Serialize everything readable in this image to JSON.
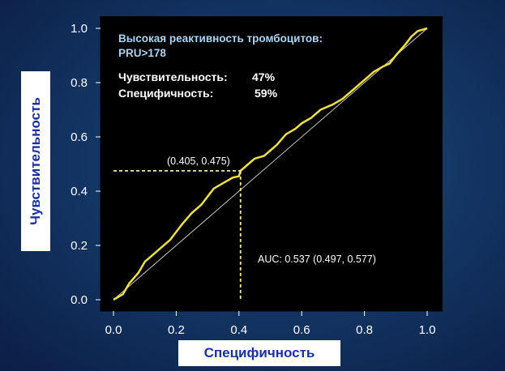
{
  "chart_data": {
    "type": "line",
    "xlabel": "Специфичность",
    "ylabel": "Чувствительность",
    "xlim": [
      0.0,
      1.0
    ],
    "ylim": [
      0.0,
      1.0
    ],
    "x_ticks": [
      "0.0",
      "0.2",
      "0.4",
      "0.6",
      "0.8",
      "1.0"
    ],
    "y_ticks": [
      "0.0",
      "0.2",
      "0.4",
      "0.6",
      "0.8",
      "1.0"
    ],
    "grid": false,
    "series": [
      {
        "color": "#f0e040",
        "x": [
          0.0,
          0.03,
          0.05,
          0.08,
          0.1,
          0.12,
          0.15,
          0.18,
          0.2,
          0.22,
          0.25,
          0.28,
          0.3,
          0.32,
          0.35,
          0.38,
          0.4,
          0.405,
          0.43,
          0.45,
          0.48,
          0.5,
          0.52,
          0.55,
          0.58,
          0.6,
          0.63,
          0.66,
          0.7,
          0.73,
          0.76,
          0.8,
          0.83,
          0.86,
          0.88,
          0.9,
          0.93,
          0.95,
          0.97,
          1.0
        ],
        "y": [
          0.0,
          0.02,
          0.06,
          0.1,
          0.14,
          0.16,
          0.19,
          0.22,
          0.25,
          0.28,
          0.32,
          0.35,
          0.38,
          0.41,
          0.43,
          0.45,
          0.455,
          0.475,
          0.5,
          0.52,
          0.53,
          0.55,
          0.57,
          0.61,
          0.63,
          0.65,
          0.67,
          0.7,
          0.72,
          0.74,
          0.77,
          0.81,
          0.84,
          0.86,
          0.87,
          0.9,
          0.94,
          0.97,
          0.99,
          1.0
        ]
      },
      {
        "color": "#c8c8c8",
        "x": [
          0.0,
          1.0
        ],
        "y": [
          0.0,
          1.0
        ]
      }
    ],
    "highlight_point": {
      "x": 0.405,
      "y": 0.475,
      "label": "(0.405, 0.475)"
    },
    "annotations": {
      "title_line1": "Высокая реактивность тромбоцитов:",
      "title_line2": "PRU>178",
      "sens_label": "Чувствительность:",
      "sens_value": "47%",
      "spec_label": "Специфичность:",
      "spec_value": "59%",
      "auc": "AUC: 0.537 (0.497, 0.577)"
    },
    "colors": {
      "plot_background": "#000000",
      "curve": "#f0e040",
      "title_text": "#a9d4f2",
      "body_text": "#ffffff",
      "slide_background": "#143766",
      "label_text": "#1a2fa0"
    }
  }
}
